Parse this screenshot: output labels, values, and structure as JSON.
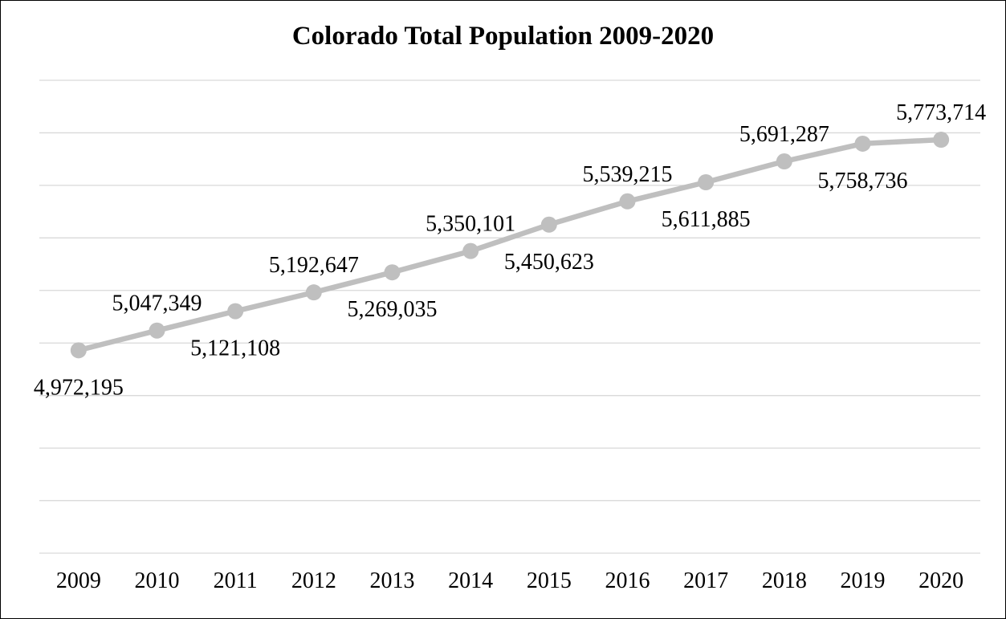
{
  "chart_data": {
    "type": "line",
    "title": "Colorado Total Population 2009-2020",
    "xlabel": "",
    "ylabel": "",
    "categories": [
      "2009",
      "2010",
      "2011",
      "2012",
      "2013",
      "2014",
      "2015",
      "2016",
      "2017",
      "2018",
      "2019",
      "2020"
    ],
    "series": [
      {
        "values": [
          4972195,
          5047349,
          5121108,
          5192647,
          5269035,
          5350101,
          5450623,
          5539215,
          5611885,
          5691287,
          5758736,
          5773714
        ],
        "labels": [
          "4,972,195",
          "5,047,349",
          "5,121,108",
          "5,192,647",
          "5,269,035",
          "5,350,101",
          "5,450,623",
          "5,539,215",
          "5,611,885",
          "5,691,287",
          "5,758,736",
          "5,773,714"
        ],
        "label_positions": [
          "below",
          "above",
          "below",
          "above",
          "below",
          "above",
          "below",
          "above",
          "below",
          "above",
          "below",
          "above"
        ]
      }
    ],
    "ylim": [
      4200000,
      6000000
    ],
    "y_gridline_step": 200000,
    "y_tick_labels_shown": false,
    "grid": true,
    "legend": "none",
    "line_color": "#bfbfbf",
    "marker_color": "#bfbfbf",
    "gridline_color": "#d9d9d9"
  }
}
